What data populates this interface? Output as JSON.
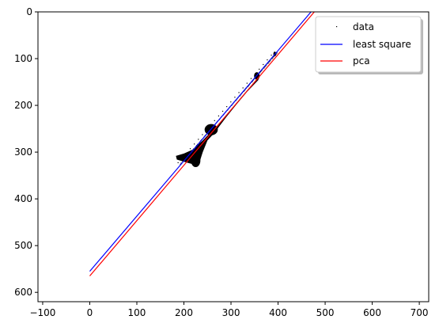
{
  "chart_data": {
    "type": "scatter",
    "xlim": [
      -110,
      720
    ],
    "ylim": [
      620,
      0
    ],
    "y_inverted": true,
    "grid": false,
    "legend_placement": "top-right",
    "xticks": [
      -100,
      0,
      100,
      200,
      300,
      400,
      500,
      600,
      700
    ],
    "yticks": [
      0,
      100,
      200,
      300,
      400,
      500,
      600
    ],
    "series": [
      {
        "name": "data",
        "kind": "points",
        "color": "#000000",
        "marker": "pixel",
        "region": {
          "polygon": [
            [
              360,
              137
            ],
            [
              330,
              175
            ],
            [
              295,
              215
            ],
            [
              275,
              240
            ],
            [
              258,
              256
            ],
            [
              240,
              275
            ],
            [
              218,
              295
            ],
            [
              200,
              303
            ],
            [
              183,
              308
            ],
            [
              185,
              316
            ],
            [
              205,
              322
            ],
            [
              220,
              326
            ],
            [
              233,
              322
            ],
            [
              240,
              300
            ],
            [
              250,
              275
            ],
            [
              262,
              262
            ],
            [
              268,
              255
            ],
            [
              275,
              245
            ],
            [
              290,
              225
            ],
            [
              310,
              200
            ],
            [
              335,
              170
            ],
            [
              358,
              146
            ]
          ]
        },
        "blobs": [
          {
            "x": 258,
            "y": 252,
            "rx": 14,
            "ry": 12
          },
          {
            "x": 225,
            "y": 318,
            "rx": 10,
            "ry": 14
          },
          {
            "x": 355,
            "y": 137,
            "rx": 6,
            "ry": 8
          },
          {
            "x": 393,
            "y": 90,
            "rx": 3,
            "ry": 5
          }
        ]
      },
      {
        "name": "least square",
        "kind": "line",
        "color": "#0000ff",
        "x": [
          0,
          470
        ],
        "y": [
          555,
          0
        ]
      },
      {
        "name": "pca",
        "kind": "line",
        "color": "#ff0000",
        "x": [
          0,
          477
        ],
        "y": [
          565,
          0
        ]
      }
    ]
  }
}
